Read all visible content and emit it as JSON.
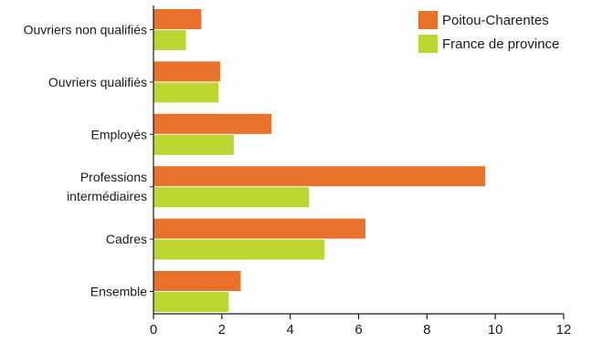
{
  "chart_data": {
    "type": "bar",
    "orientation": "horizontal",
    "title": "",
    "xlabel": "",
    "ylabel": "",
    "categories": [
      [
        "Ouvriers non qualifiés"
      ],
      [
        "Ouvriers qualifiés"
      ],
      [
        "Employés"
      ],
      [
        "Professions",
        "intermédiaires"
      ],
      [
        "Cadres"
      ],
      [
        "Ensemble"
      ]
    ],
    "series": [
      {
        "name": "Poitou-Charentes",
        "color": "#e8712b",
        "values": [
          1.4,
          1.95,
          3.45,
          9.7,
          6.2,
          2.55
        ]
      },
      {
        "name": "France de province",
        "color": "#bdd531",
        "values": [
          0.95,
          1.9,
          2.35,
          4.55,
          5.0,
          2.2
        ]
      }
    ],
    "xlim": [
      0,
      12
    ],
    "xticks": [
      0,
      2,
      4,
      6,
      8,
      10,
      12
    ],
    "grid": false,
    "legend_position": "top-right"
  }
}
